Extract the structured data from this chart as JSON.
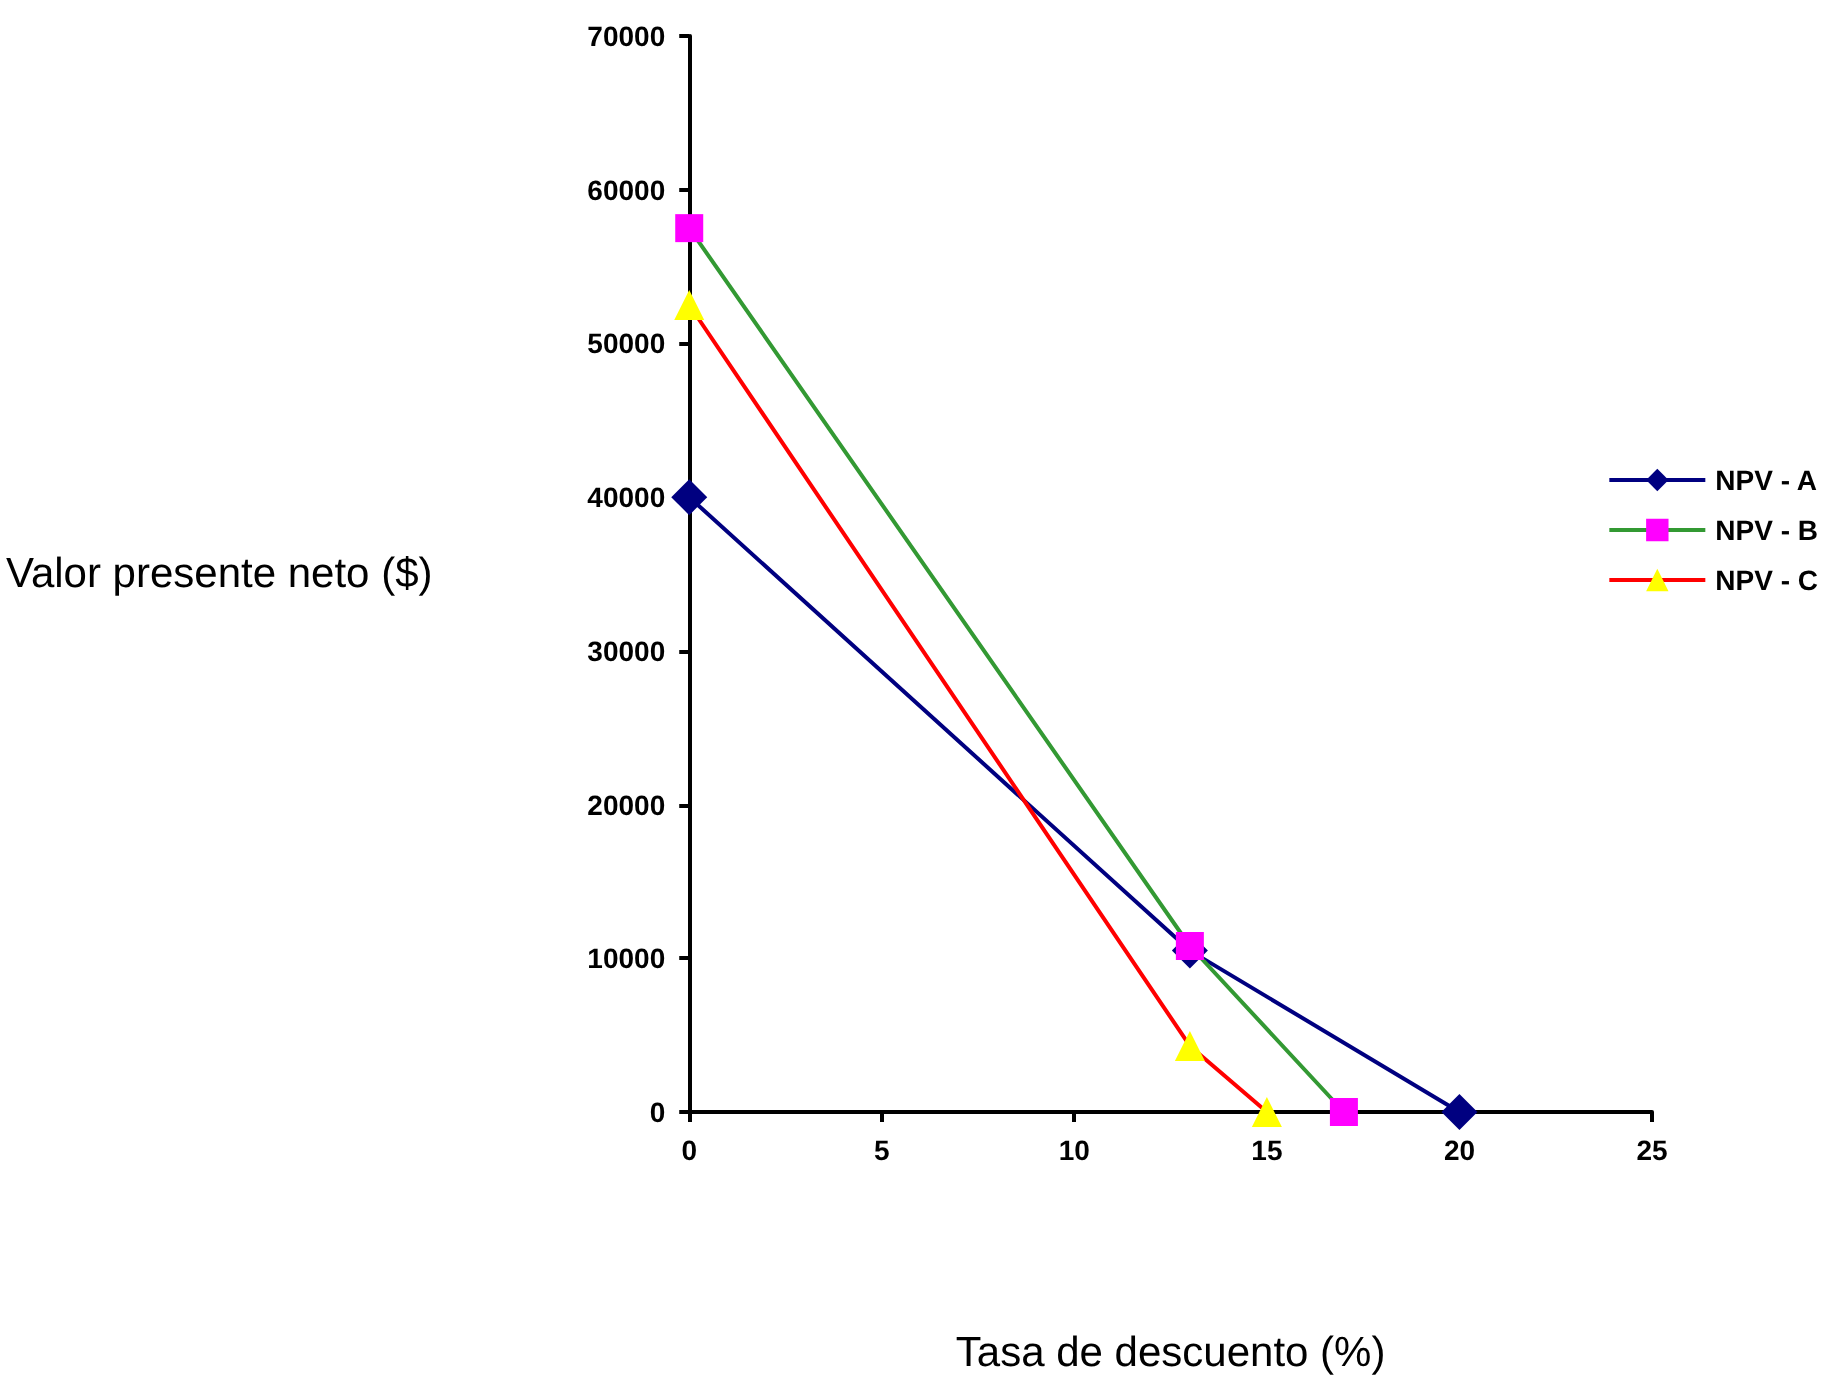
{
  "chart_data": {
    "type": "line",
    "xlabel": "Tasa de descuento (%)",
    "ylabel": "Valor presente neto ($)",
    "xlim": [
      0,
      25
    ],
    "xticks": [
      0,
      5,
      10,
      15,
      20,
      25
    ],
    "ylim": [
      0,
      70000
    ],
    "yticks": [
      0,
      10000,
      20000,
      30000,
      40000,
      50000,
      60000,
      70000
    ],
    "grid": false,
    "legend": "right",
    "series": [
      {
        "name": "NPV - A",
        "color": "#000080",
        "marker": "diamond",
        "x": [
          0,
          13,
          20
        ],
        "values": [
          40000,
          10500,
          0
        ]
      },
      {
        "name": "NPV - B",
        "color": "#339933",
        "colors": [
          "#ff00ff",
          "#ff00ff",
          "#ff00ff"
        ],
        "marker": "square",
        "x": [
          0,
          13,
          17
        ],
        "values": [
          57500,
          10800,
          0
        ]
      },
      {
        "name": "NPV - C",
        "color": "#ff0000",
        "colors": [
          "#ffff00",
          "#ffff00",
          "#ffff00"
        ],
        "marker": "triangle",
        "x": [
          0,
          13,
          15
        ],
        "values": [
          52500,
          4300,
          0
        ]
      }
    ]
  }
}
